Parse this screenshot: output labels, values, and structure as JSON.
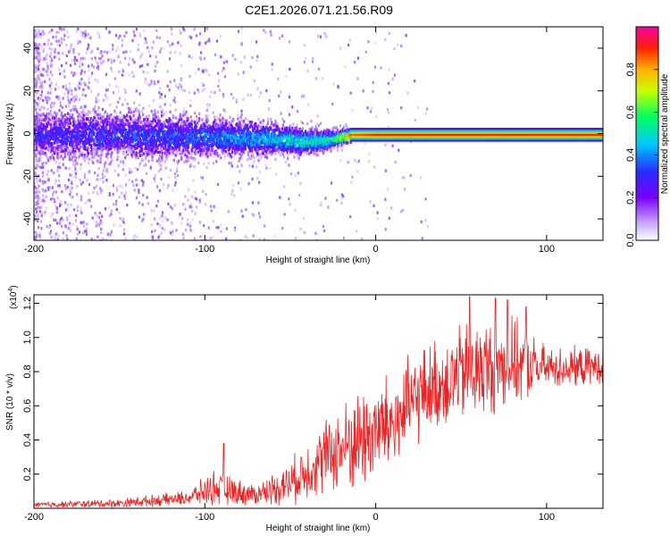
{
  "title": "C2E1.2026.071.21.56.R09",
  "chart_data": [
    {
      "type": "heatmap",
      "name": "spectrogram",
      "xlabel": "Height of straight line (km)",
      "ylabel": "Frequency (Hz)",
      "xlim": [
        -200,
        133
      ],
      "ylim": [
        -50,
        50
      ],
      "xticks": [
        -200,
        -100,
        0,
        100
      ],
      "yticks": [
        -40,
        -20,
        0,
        20,
        40
      ],
      "colorbar": {
        "label": "Normalized spectral amplitude",
        "range": [
          0,
          1
        ],
        "ticks": [
          "0.0",
          "0.2",
          "0.4",
          "0.6",
          "0.8"
        ],
        "colors": [
          "#e8e0ff",
          "#7a00ff",
          "#2a2aff",
          "#00c8ff",
          "#00ff60",
          "#c8ff00",
          "#ffb000",
          "#ff2000",
          "#ff00a0"
        ]
      },
      "band": {
        "description_points": [
          {
            "x": -200,
            "center": 0,
            "width": 12,
            "amp": 0.25
          },
          {
            "x": -150,
            "center": 0,
            "width": 11,
            "amp": 0.3
          },
          {
            "x": -100,
            "center": -1,
            "width": 9,
            "amp": 0.35
          },
          {
            "x": -60,
            "center": -2,
            "width": 7,
            "amp": 0.45
          },
          {
            "x": -40,
            "center": -3,
            "width": 6,
            "amp": 0.5
          },
          {
            "x": -25,
            "center": -2,
            "width": 4,
            "amp": 0.55
          },
          {
            "x": -15,
            "center": 0,
            "width": 3,
            "amp": 0.85
          },
          {
            "x": 0,
            "center": 0,
            "width": 3,
            "amp": 0.9
          },
          {
            "x": 133,
            "center": 0,
            "width": 3,
            "amp": 0.9
          }
        ]
      }
    },
    {
      "type": "line",
      "name": "snr",
      "xlabel": "Height of straight line (km)",
      "ylabel": "SNR (10 * v/v)",
      "y_multiplier_label": "(x10",
      "y_multiplier_exp": "4",
      "y_multiplier_close": ")",
      "xlim": [
        -200,
        133
      ],
      "ylim": [
        0,
        1.25
      ],
      "xticks": [
        -200,
        -100,
        0,
        100
      ],
      "yticks": [
        0.2,
        0.4,
        0.6,
        0.8,
        1.0,
        1.2
      ],
      "ytick_labels": [
        "0.2",
        "0.4",
        "0.6",
        "0.8",
        "1.0",
        "1.2"
      ],
      "color": "#ee2222",
      "envelope": [
        {
          "x": -200,
          "base": 0.02,
          "amp": 0.02
        },
        {
          "x": -150,
          "base": 0.03,
          "amp": 0.03
        },
        {
          "x": -110,
          "base": 0.06,
          "amp": 0.05
        },
        {
          "x": -95,
          "base": 0.12,
          "amp": 0.12
        },
        {
          "x": -85,
          "base": 0.1,
          "amp": 0.1
        },
        {
          "x": -70,
          "base": 0.08,
          "amp": 0.07
        },
        {
          "x": -50,
          "base": 0.15,
          "amp": 0.15
        },
        {
          "x": -30,
          "base": 0.3,
          "amp": 0.25
        },
        {
          "x": -10,
          "base": 0.4,
          "amp": 0.35
        },
        {
          "x": 10,
          "base": 0.5,
          "amp": 0.35
        },
        {
          "x": 30,
          "base": 0.7,
          "amp": 0.3
        },
        {
          "x": 55,
          "base": 0.8,
          "amp": 0.35
        },
        {
          "x": 80,
          "base": 0.85,
          "amp": 0.3
        },
        {
          "x": 100,
          "base": 0.82,
          "amp": 0.15
        },
        {
          "x": 133,
          "base": 0.83,
          "amp": 0.12
        }
      ],
      "peaks": [
        {
          "x": 55,
          "y": 1.24
        },
        {
          "x": 70,
          "y": 1.23
        },
        {
          "x": 77,
          "y": 1.22
        },
        {
          "x": 88,
          "y": 1.18
        },
        {
          "x": -89,
          "y": 0.38
        }
      ]
    }
  ]
}
